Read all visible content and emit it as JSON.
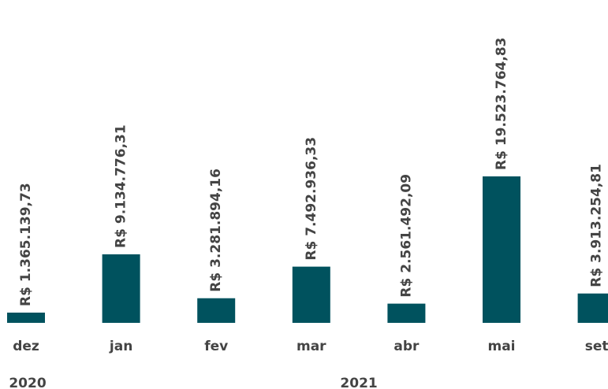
{
  "chart_data": {
    "type": "bar",
    "categories": [
      "dez",
      "jan",
      "fev",
      "mar",
      "abr",
      "mai",
      "set"
    ],
    "values": [
      1365139.73,
      9134776.31,
      3281894.16,
      7492936.33,
      2561492.09,
      19523764.83,
      3913254.81
    ],
    "value_labels": [
      "R$ 1.365.139,73",
      "R$ 9.134.776,31",
      "R$ 3.281.894,16",
      "R$ 7.492.936,33",
      "R$ 2.561.492,09",
      "R$ 19.523.764,83",
      "R$ 3.913.254,81"
    ],
    "groups": [
      {
        "label": "2020",
        "span": 1
      },
      {
        "label": "2021",
        "span": 6
      }
    ],
    "color": "#00525e"
  }
}
